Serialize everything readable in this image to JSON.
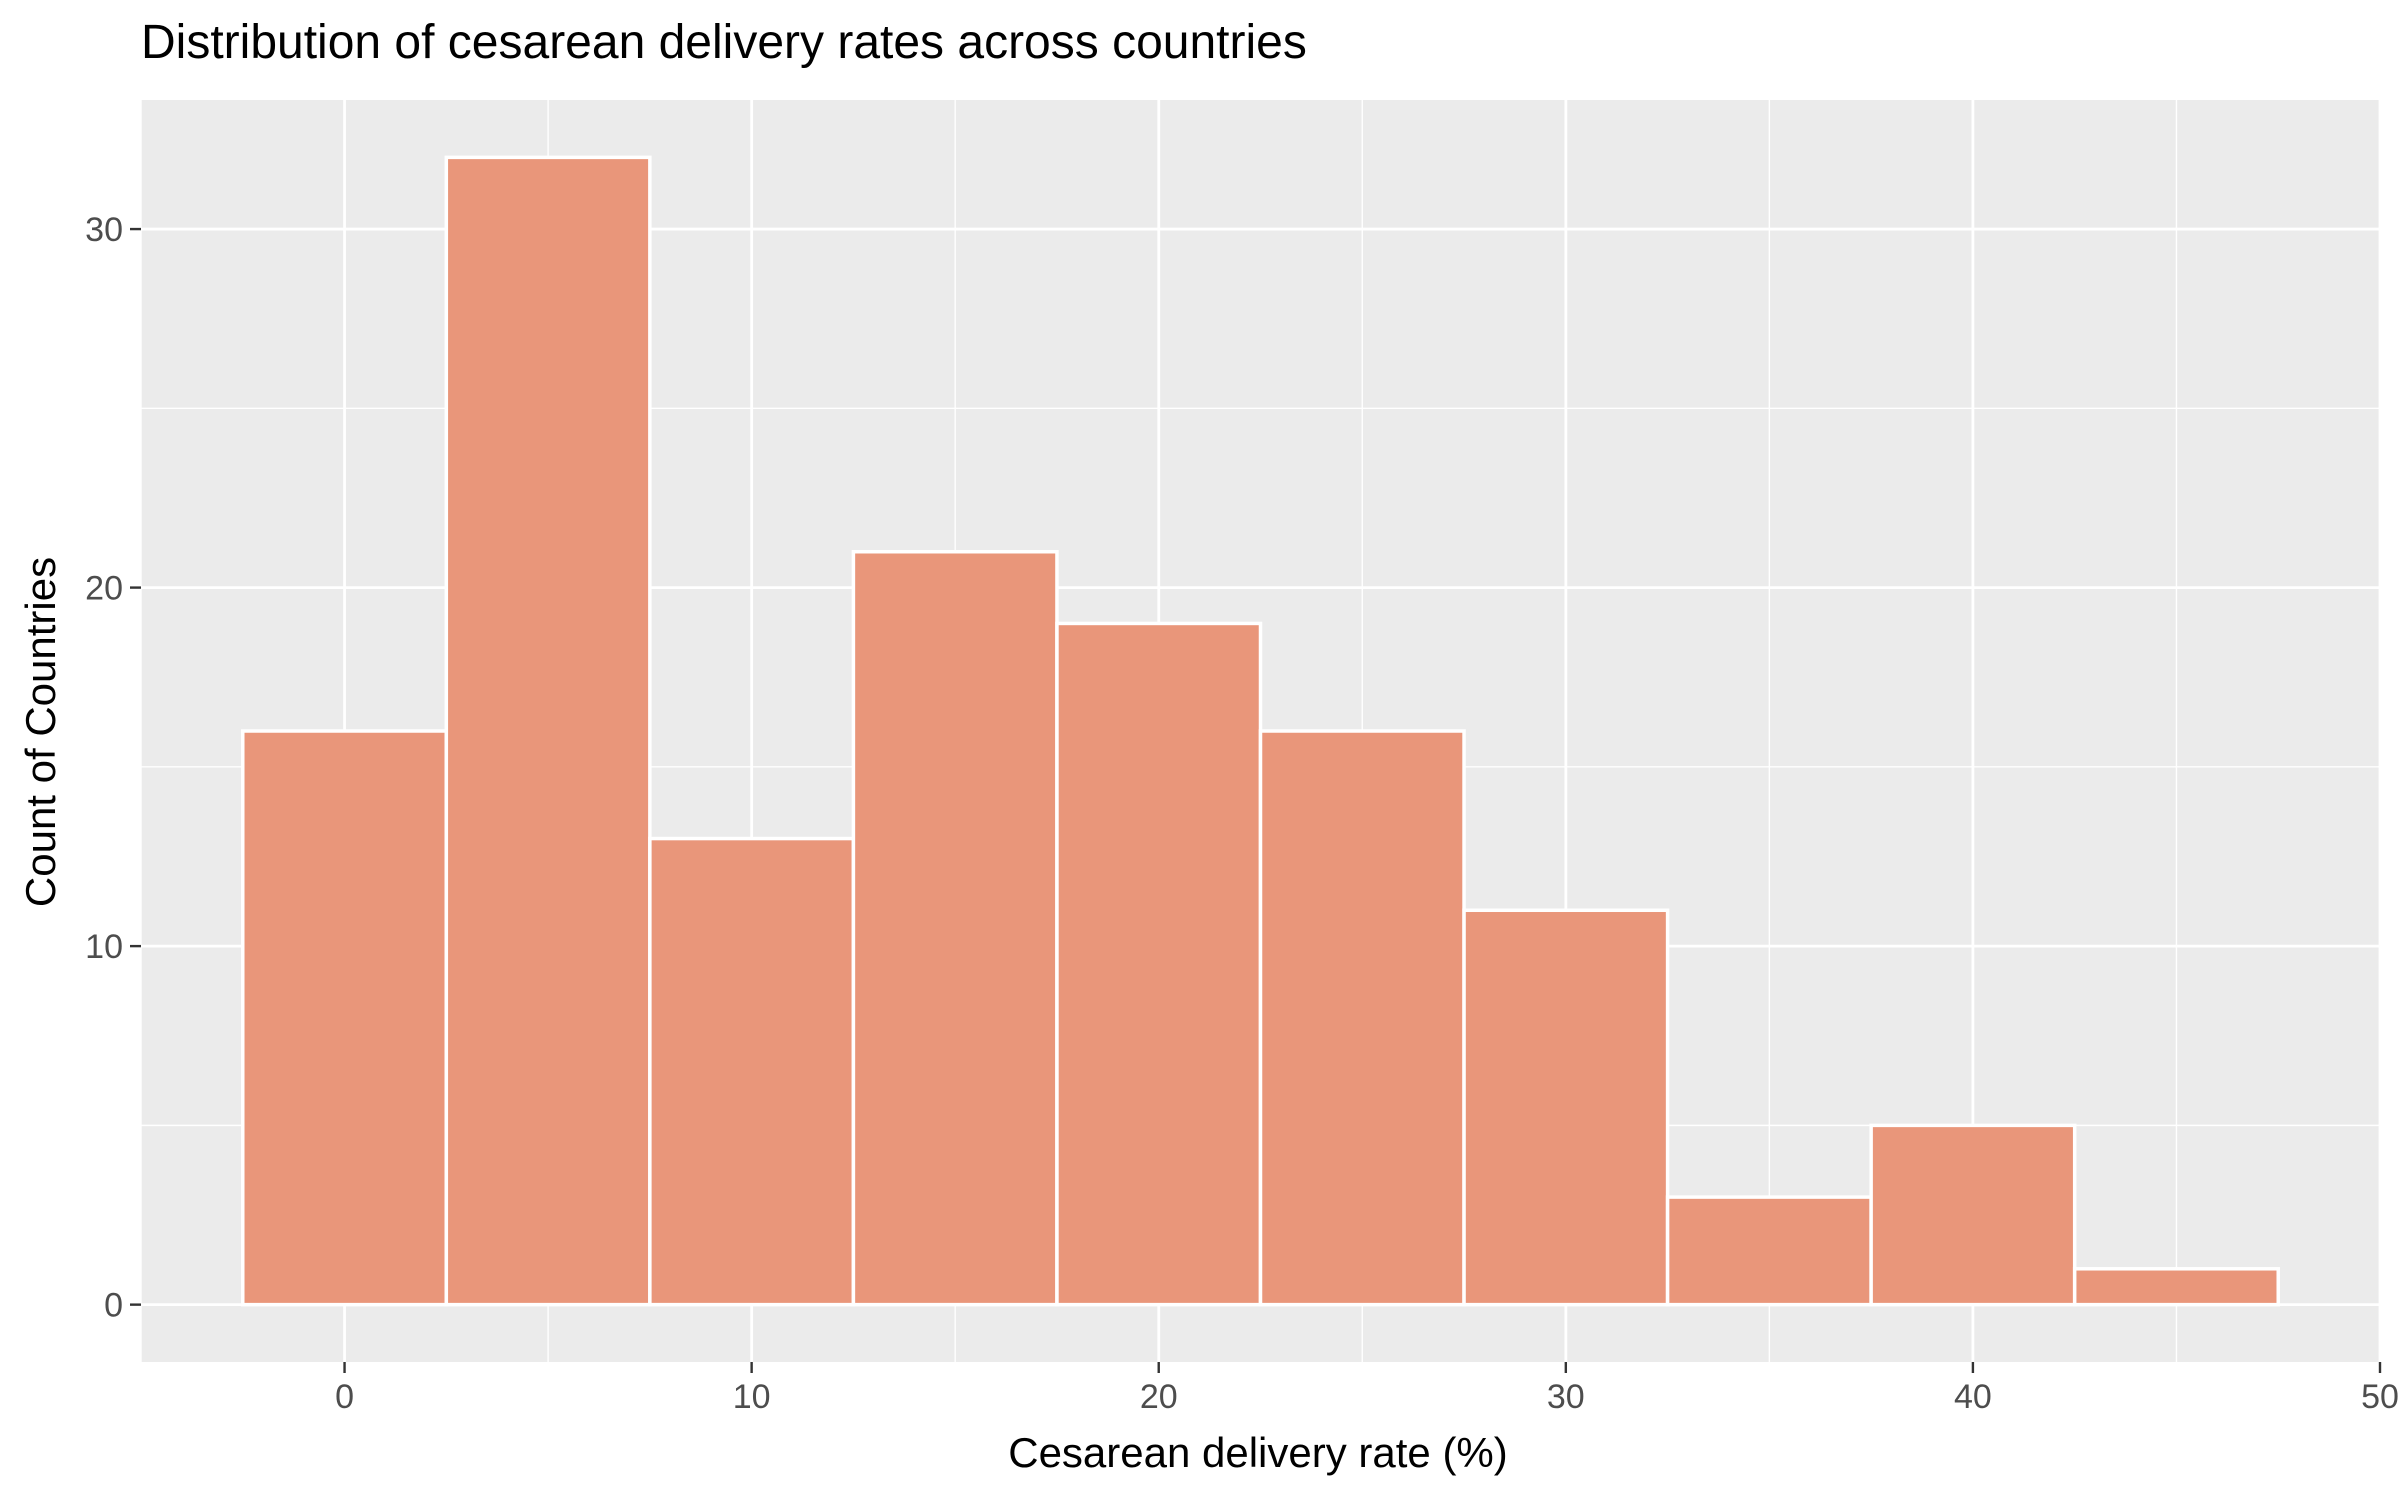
{
  "chart_data": {
    "type": "bar",
    "title": "Distribution of cesarean delivery rates across countries",
    "xlabel": "Cesarean delivery rate (%)",
    "ylabel": "Count of Countries",
    "bin_width": 5,
    "bins": [
      {
        "center": 0,
        "count": 16
      },
      {
        "center": 5,
        "count": 32
      },
      {
        "center": 10,
        "count": 13
      },
      {
        "center": 15,
        "count": 21
      },
      {
        "center": 20,
        "count": 19
      },
      {
        "center": 25,
        "count": 16
      },
      {
        "center": 30,
        "count": 11
      },
      {
        "center": 35,
        "count": 3
      },
      {
        "center": 40,
        "count": 5
      },
      {
        "center": 45,
        "count": 1
      }
    ],
    "xlim": [
      -5,
      50
    ],
    "ylim": [
      -1.6,
      33.6
    ],
    "x_ticks": [
      0,
      10,
      20,
      30,
      40,
      50
    ],
    "x_tick_labels": [
      "0",
      "10",
      "20",
      "30",
      "40",
      "50"
    ],
    "y_ticks": [
      0,
      10,
      20,
      30
    ],
    "y_tick_labels": [
      "0",
      "10",
      "20",
      "30"
    ],
    "grid": true,
    "colors": {
      "bar_fill": "#E9967A",
      "bar_stroke": "#ffffff",
      "panel_background": "#EBEBEB",
      "grid_major": "#ffffff",
      "grid_minor": "#F5F5F5",
      "text": "#000000",
      "tick_text": "#4D4D4D",
      "tick_mark": "#333333"
    }
  }
}
